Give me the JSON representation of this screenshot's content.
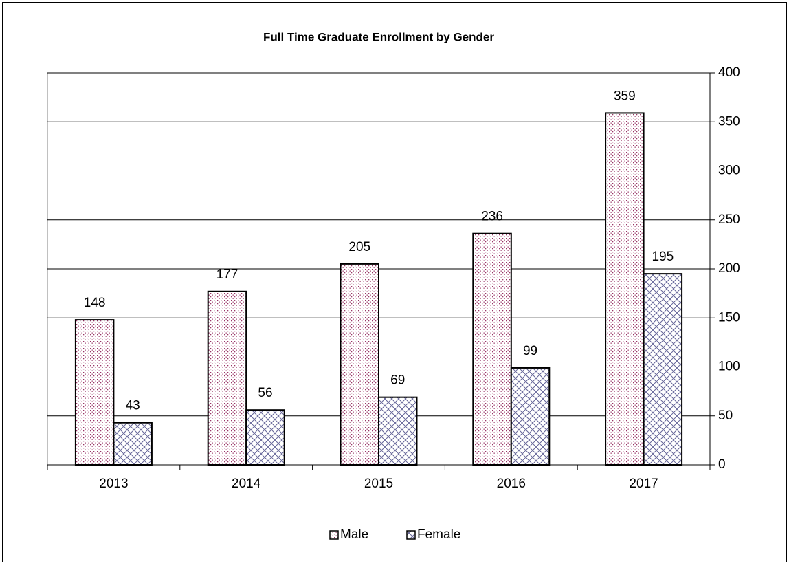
{
  "chart_data": {
    "type": "bar",
    "title": "Full Time Graduate Enrollment by Gender",
    "categories": [
      "2013",
      "2014",
      "2015",
      "2016",
      "2017"
    ],
    "series": [
      {
        "name": "Male",
        "color": "#993366",
        "values": [
          148,
          177,
          205,
          236,
          359
        ]
      },
      {
        "name": "Female",
        "color": "#666699",
        "values": [
          43,
          56,
          69,
          99,
          195
        ]
      }
    ],
    "ylim": [
      0,
      400
    ],
    "yticks": [
      0,
      50,
      100,
      150,
      200,
      250,
      300,
      350,
      400
    ],
    "grid": true,
    "y_axis_side": "right",
    "legend": "bottom"
  }
}
